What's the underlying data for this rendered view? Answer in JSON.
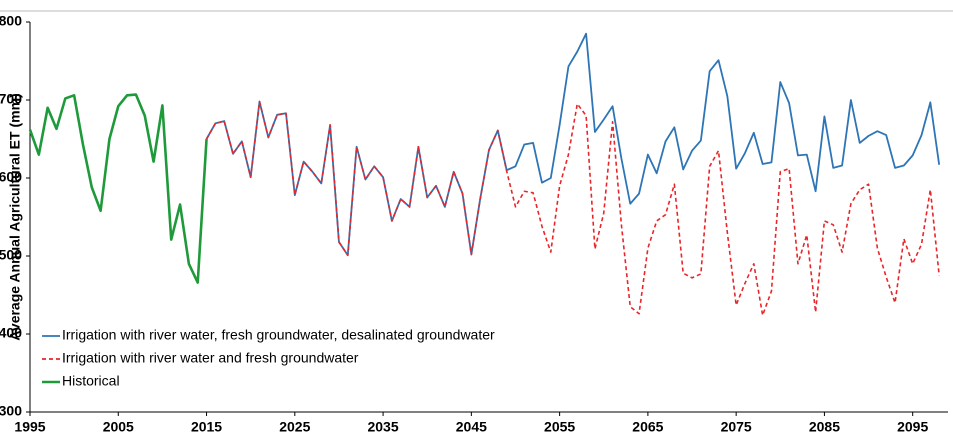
{
  "chart_data": {
    "type": "line",
    "y_label": "Average Annual Agricultural ET (mm)",
    "x": [
      1995,
      1996,
      1997,
      1998,
      1999,
      2000,
      2001,
      2002,
      2003,
      2004,
      2005,
      2006,
      2007,
      2008,
      2009,
      2010,
      2011,
      2012,
      2013,
      2014,
      2015,
      2016,
      2017,
      2018,
      2019,
      2020,
      2021,
      2022,
      2023,
      2024,
      2025,
      2026,
      2027,
      2028,
      2029,
      2030,
      2031,
      2032,
      2033,
      2034,
      2035,
      2036,
      2037,
      2038,
      2039,
      2040,
      2041,
      2042,
      2043,
      2044,
      2045,
      2046,
      2047,
      2048,
      2049,
      2050,
      2051,
      2052,
      2053,
      2054,
      2055,
      2056,
      2057,
      2058,
      2059,
      2060,
      2061,
      2062,
      2063,
      2064,
      2065,
      2066,
      2067,
      2068,
      2069,
      2070,
      2071,
      2072,
      2073,
      2074,
      2075,
      2076,
      2077,
      2078,
      2079,
      2080,
      2081,
      2082,
      2083,
      2084,
      2085,
      2086,
      2087,
      2088,
      2089,
      2090,
      2091,
      2092,
      2093,
      2094,
      2095,
      2096,
      2097,
      2098
    ],
    "series": [
      {
        "name": "Irrigation with river water, fresh groundwater, desalinated groundwater",
        "color": "#2e75b6",
        "dash": false,
        "values": [
          null,
          null,
          null,
          null,
          null,
          null,
          null,
          null,
          null,
          null,
          null,
          null,
          null,
          null,
          null,
          null,
          null,
          null,
          null,
          null,
          650,
          670,
          673,
          631,
          647,
          601,
          698,
          652,
          681,
          683,
          578,
          621,
          608,
          593,
          668,
          518,
          501,
          640,
          598,
          615,
          601,
          545,
          573,
          563,
          640,
          575,
          590,
          563,
          608,
          580,
          502,
          573,
          636,
          661,
          610,
          615,
          643,
          645,
          594,
          600,
          668,
          743,
          762,
          785,
          659,
          675,
          692,
          625,
          567,
          580,
          630,
          606,
          647,
          665,
          611,
          635,
          648,
          737,
          751,
          705,
          612,
          632,
          658,
          618,
          620,
          723,
          696,
          629,
          630,
          583,
          679,
          613,
          616,
          700,
          645,
          654,
          660,
          655,
          613,
          616,
          629,
          655,
          697,
          617
        ]
      },
      {
        "name": "Irrigation with river water and fresh groundwater",
        "color": "#e8262a",
        "dash": true,
        "values": [
          null,
          null,
          null,
          null,
          null,
          null,
          null,
          null,
          null,
          null,
          null,
          null,
          null,
          null,
          null,
          null,
          null,
          null,
          null,
          null,
          650,
          670,
          673,
          631,
          647,
          601,
          698,
          652,
          681,
          683,
          578,
          621,
          608,
          593,
          668,
          518,
          501,
          640,
          598,
          615,
          601,
          545,
          573,
          563,
          640,
          575,
          590,
          563,
          608,
          580,
          502,
          573,
          636,
          661,
          609,
          563,
          583,
          581,
          538,
          505,
          590,
          630,
          695,
          680,
          509,
          555,
          672,
          540,
          435,
          426,
          510,
          545,
          553,
          592,
          478,
          472,
          477,
          615,
          635,
          530,
          437,
          465,
          490,
          424,
          455,
          608,
          612,
          490,
          527,
          428,
          545,
          540,
          505,
          567,
          585,
          592,
          510,
          473,
          440,
          522,
          490,
          515,
          585,
          475
        ]
      },
      {
        "name": "Historical",
        "color": "#1f9a3a",
        "dash": false,
        "values": [
          662,
          630,
          690,
          663,
          702,
          706,
          643,
          588,
          558,
          650,
          692,
          706,
          707,
          680,
          621,
          693,
          521,
          566,
          490,
          466,
          650,
          null,
          null,
          null,
          null,
          null,
          null,
          null,
          null,
          null,
          null,
          null,
          null,
          null,
          null,
          null,
          null,
          null,
          null,
          null,
          null,
          null,
          null,
          null,
          null,
          null,
          null,
          null,
          null,
          null,
          null,
          null,
          null,
          null,
          null,
          null,
          null,
          null,
          null,
          null,
          null,
          null,
          null,
          null,
          null,
          null,
          null,
          null,
          null,
          null,
          null,
          null,
          null,
          null,
          null,
          null,
          null,
          null,
          null,
          null,
          null,
          null,
          null,
          null,
          null,
          null,
          null,
          null,
          null,
          null,
          null,
          null,
          null,
          null,
          null,
          null,
          null,
          null,
          null,
          null,
          null,
          null,
          null,
          null
        ]
      }
    ],
    "xlim": [
      1995,
      2099
    ],
    "ylim": [
      300,
      800
    ],
    "xticks": [
      1995,
      2005,
      2015,
      2025,
      2035,
      2045,
      2055,
      2065,
      2075,
      2085,
      2095
    ],
    "yticks": [
      300,
      400,
      500,
      600,
      700,
      800
    ],
    "grid": false,
    "legend": "lower left"
  }
}
